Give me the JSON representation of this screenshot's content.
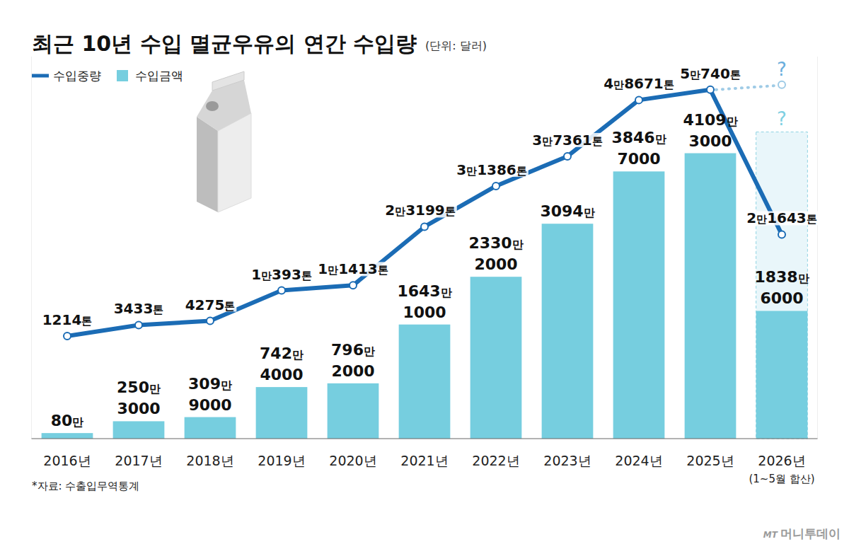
{
  "chart_data": {
    "type": "bar",
    "title": "최근 10년 수입 멸균우유의 연간 수입량",
    "subtitle": "(단위: 달러)",
    "categories": [
      "2016년",
      "2017년",
      "2018년",
      "2019년",
      "2020년",
      "2021년",
      "2022년",
      "2023년",
      "2024년",
      "2025년",
      "2026년"
    ],
    "series": [
      {
        "name": "수입중량",
        "type": "line",
        "color": "#1b6cb5",
        "axis": "y2",
        "marker": "circle",
        "values": [
          1214,
          3433,
          4275,
          10393,
          11413,
          23199,
          31386,
          37361,
          48671,
          50740,
          21643
        ],
        "value_labels": [
          "1214톤",
          "3433톤",
          "4275톤",
          "1만393톤",
          "1만1413톤",
          "2만3199톤",
          "3만1386톤",
          "3만7361톤",
          "4만8671톤",
          "5만740톤",
          "2만1643톤"
        ]
      },
      {
        "name": "수입금액",
        "type": "bar",
        "color": "#76cedf",
        "values": [
          800000,
          2503000,
          3099000,
          7424000,
          7962000,
          16431000,
          23302000,
          30940000,
          38467000,
          41093000,
          18386000
        ],
        "value_labels": [
          "80만",
          "250만 3000",
          "309만 9000",
          "742만 4000",
          "796만 2000",
          "1643만 1000",
          "2330만 2000",
          "3094만",
          "3846만 7000",
          "4109만 3000",
          "1838만 6000"
        ]
      }
    ],
    "ylim": [
      0,
      55000000
    ],
    "yticks": [],
    "y2lim": [
      -19400,
      57400
    ],
    "y2ticks": [],
    "tick_labels": "x",
    "data_labels": true,
    "legend": "top-left",
    "grid": false,
    "annotations": [
      "?",
      "?",
      "(1~5월 합산)"
    ],
    "source": "*자료: 수출입무역통계",
    "credit": "MT 머니투데이"
  }
}
